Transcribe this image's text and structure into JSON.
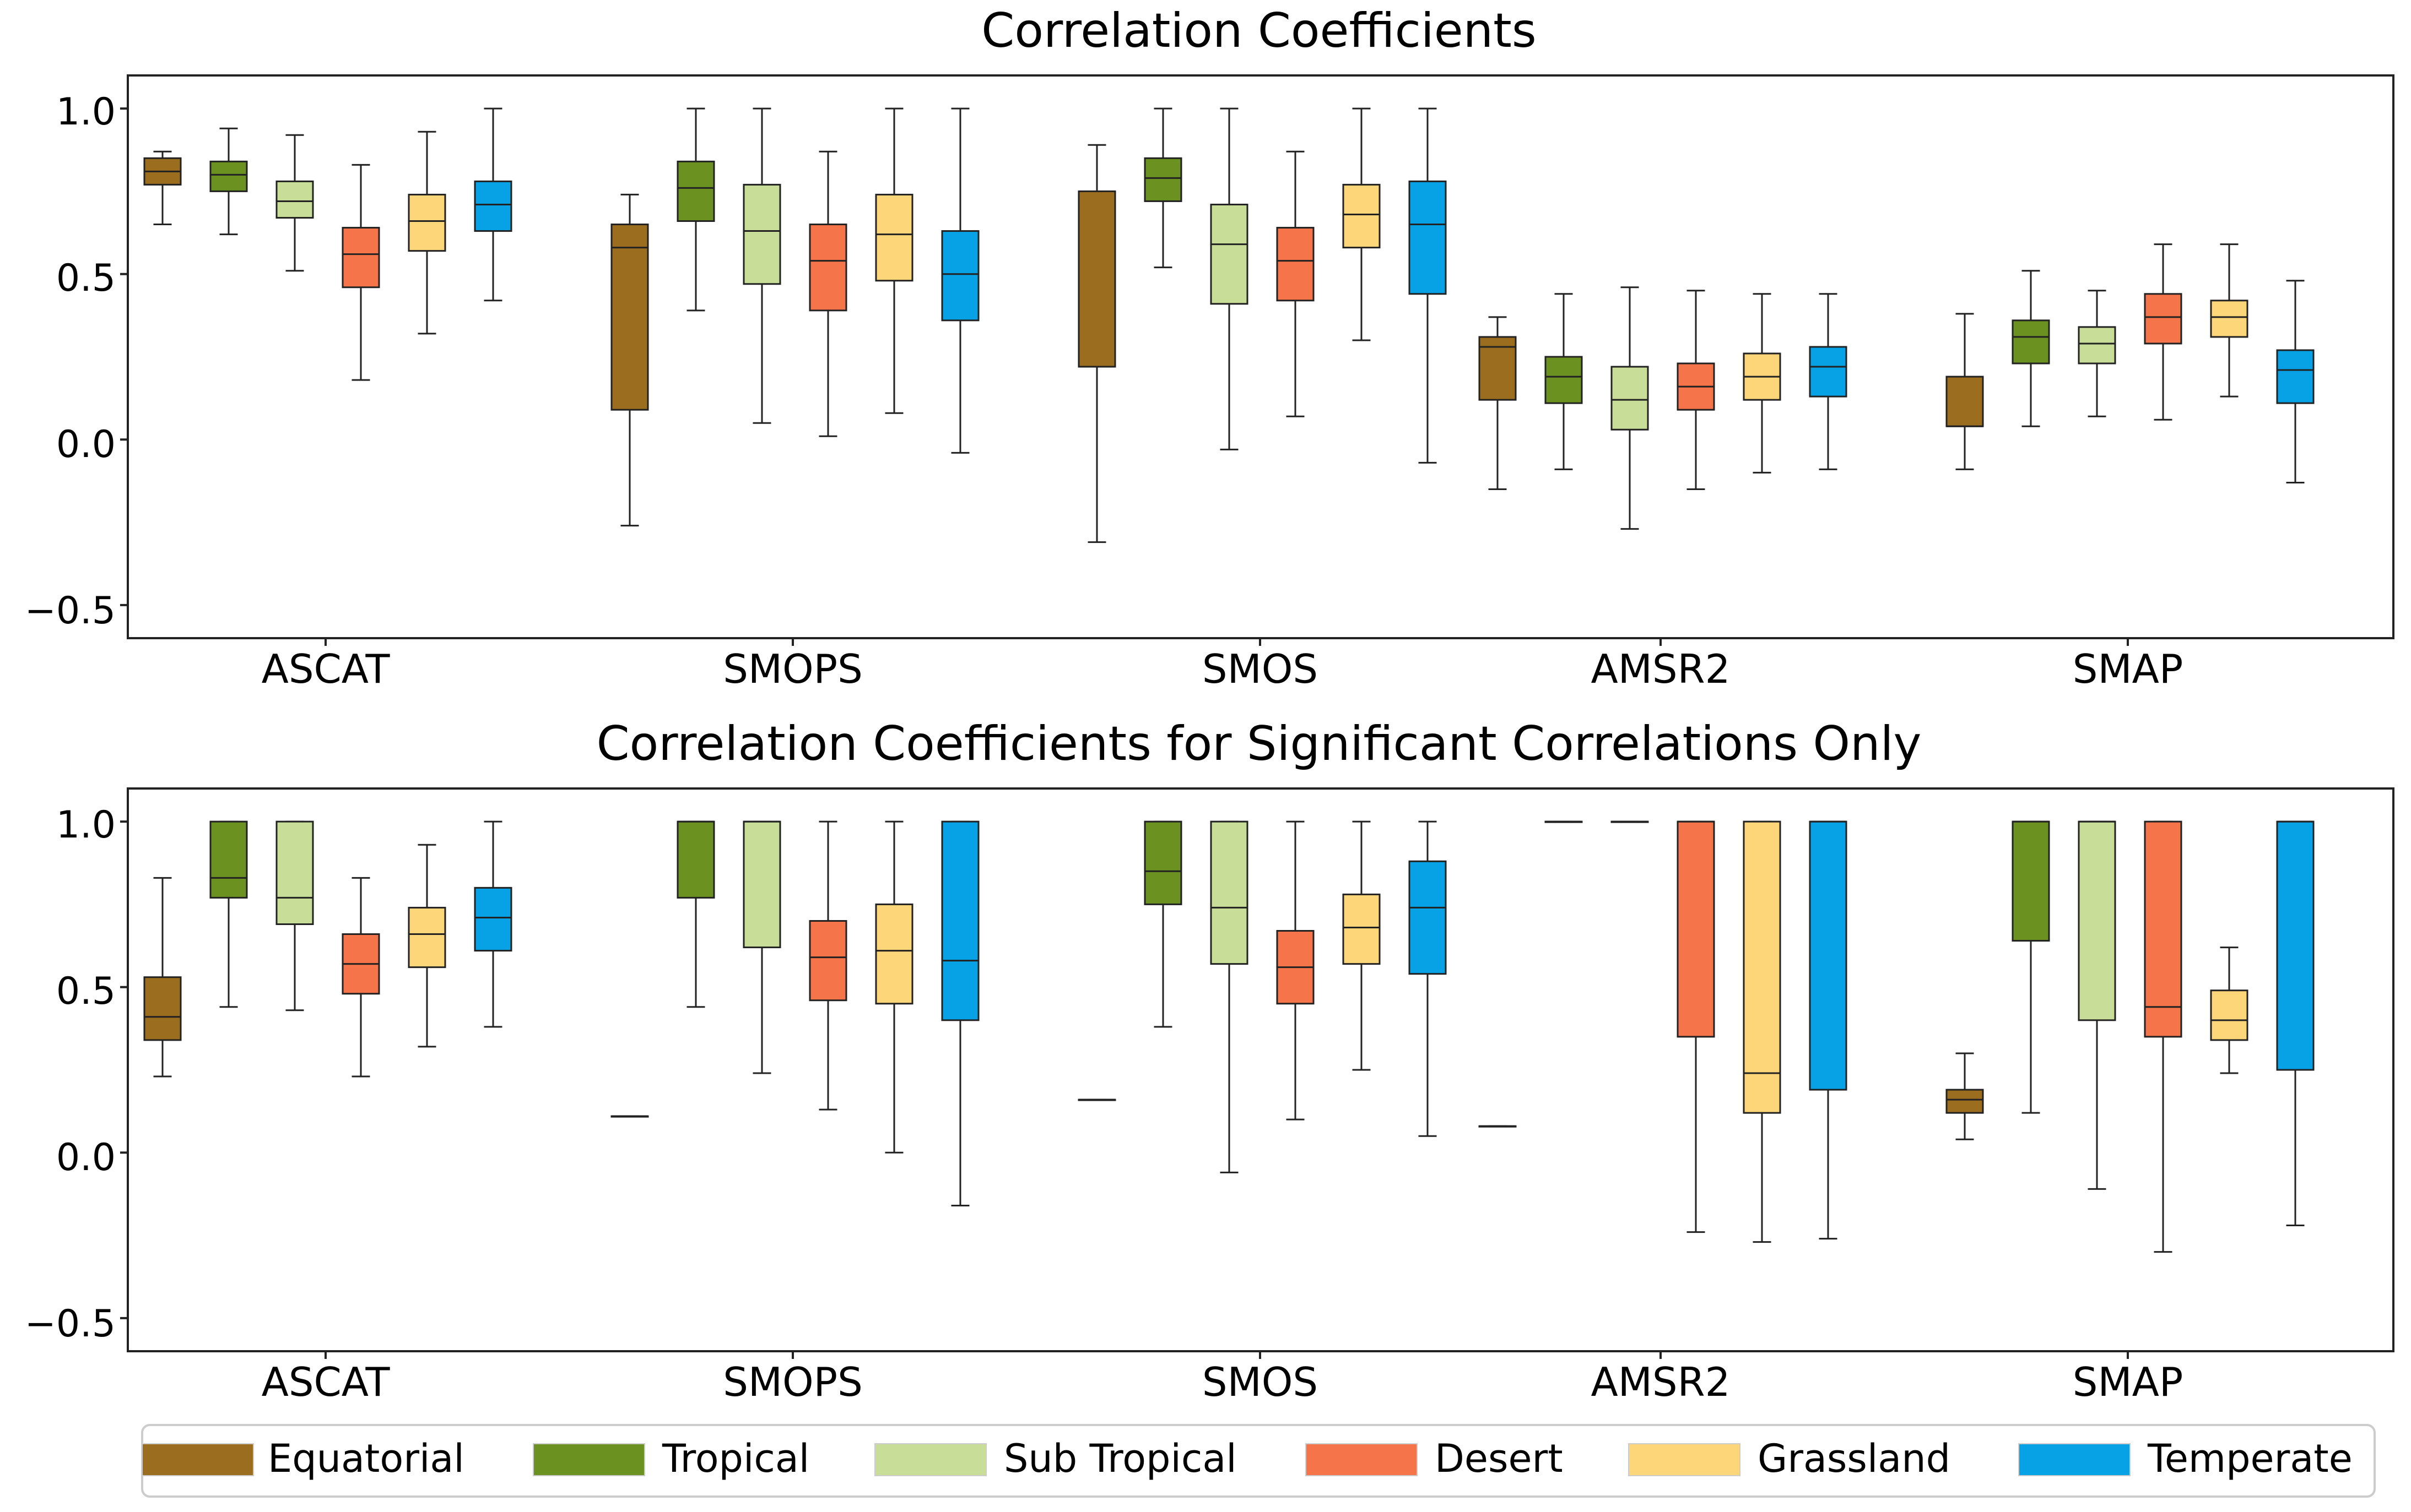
{
  "colors": {
    "Equatorial": "#9b6d1f",
    "Tropical": "#6b9221",
    "Sub Tropical": "#c8de98",
    "Desert": "#f6744a",
    "Grassland": "#fed67a",
    "Temperate": "#07a2e6"
  },
  "legend": {
    "labels": [
      "Equatorial",
      "Tropical",
      "Sub Tropical",
      "Desert",
      "Grassland",
      "Temperate"
    ]
  },
  "chart_data": [
    {
      "type": "box",
      "title": "Correlation Coefficients",
      "categories": [
        "ASCAT",
        "SMOPS",
        "SMOS",
        "AMSR2",
        "SMAP"
      ],
      "y_ticks": [
        "1.0",
        "0.5",
        "0.0",
        "−0.5"
      ],
      "ylim": [
        -0.6,
        1.1
      ],
      "series": [
        {
          "name": "Equatorial",
          "boxes": [
            {
              "whislo": 0.65,
              "q1": 0.77,
              "med": 0.81,
              "q3": 0.85,
              "whishi": 0.87
            },
            {
              "whislo": -0.26,
              "q1": 0.09,
              "med": 0.58,
              "q3": 0.65,
              "whishi": 0.74
            },
            {
              "whislo": -0.31,
              "q1": 0.22,
              "med": 0.22,
              "q3": 0.75,
              "whishi": 0.89
            },
            {
              "whislo": -0.15,
              "q1": 0.12,
              "med": 0.28,
              "q3": 0.31,
              "whishi": 0.37
            },
            {
              "whislo": -0.09,
              "q1": 0.04,
              "med": 0.04,
              "q3": 0.19,
              "whishi": 0.38
            }
          ]
        },
        {
          "name": "Tropical",
          "boxes": [
            {
              "whislo": 0.62,
              "q1": 0.75,
              "med": 0.8,
              "q3": 0.84,
              "whishi": 0.94
            },
            {
              "whislo": 0.39,
              "q1": 0.66,
              "med": 0.76,
              "q3": 0.84,
              "whishi": 1.0
            },
            {
              "whislo": 0.52,
              "q1": 0.72,
              "med": 0.79,
              "q3": 0.85,
              "whishi": 1.0
            },
            {
              "whislo": -0.09,
              "q1": 0.11,
              "med": 0.19,
              "q3": 0.25,
              "whishi": 0.44
            },
            {
              "whislo": 0.04,
              "q1": 0.23,
              "med": 0.31,
              "q3": 0.36,
              "whishi": 0.51
            }
          ]
        },
        {
          "name": "Sub Tropical",
          "boxes": [
            {
              "whislo": 0.51,
              "q1": 0.67,
              "med": 0.72,
              "q3": 0.78,
              "whishi": 0.92
            },
            {
              "whislo": 0.05,
              "q1": 0.47,
              "med": 0.63,
              "q3": 0.77,
              "whishi": 1.0
            },
            {
              "whislo": -0.03,
              "q1": 0.41,
              "med": 0.59,
              "q3": 0.71,
              "whishi": 1.0
            },
            {
              "whislo": -0.27,
              "q1": 0.03,
              "med": 0.12,
              "q3": 0.22,
              "whishi": 0.46
            },
            {
              "whislo": 0.07,
              "q1": 0.23,
              "med": 0.29,
              "q3": 0.34,
              "whishi": 0.45
            }
          ]
        },
        {
          "name": "Desert",
          "boxes": [
            {
              "whislo": 0.18,
              "q1": 0.46,
              "med": 0.56,
              "q3": 0.64,
              "whishi": 0.83
            },
            {
              "whislo": 0.01,
              "q1": 0.39,
              "med": 0.54,
              "q3": 0.65,
              "whishi": 0.87
            },
            {
              "whislo": 0.07,
              "q1": 0.42,
              "med": 0.54,
              "q3": 0.64,
              "whishi": 0.87
            },
            {
              "whislo": -0.15,
              "q1": 0.09,
              "med": 0.16,
              "q3": 0.23,
              "whishi": 0.45
            },
            {
              "whislo": 0.06,
              "q1": 0.29,
              "med": 0.37,
              "q3": 0.44,
              "whishi": 0.59
            }
          ]
        },
        {
          "name": "Grassland",
          "boxes": [
            {
              "whislo": 0.32,
              "q1": 0.57,
              "med": 0.66,
              "q3": 0.74,
              "whishi": 0.93
            },
            {
              "whislo": 0.08,
              "q1": 0.48,
              "med": 0.62,
              "q3": 0.74,
              "whishi": 1.0
            },
            {
              "whislo": 0.3,
              "q1": 0.58,
              "med": 0.68,
              "q3": 0.77,
              "whishi": 1.0
            },
            {
              "whislo": -0.1,
              "q1": 0.12,
              "med": 0.19,
              "q3": 0.26,
              "whishi": 0.44
            },
            {
              "whislo": 0.13,
              "q1": 0.31,
              "med": 0.37,
              "q3": 0.42,
              "whishi": 0.59
            }
          ]
        },
        {
          "name": "Temperate",
          "boxes": [
            {
              "whislo": 0.42,
              "q1": 0.63,
              "med": 0.71,
              "q3": 0.78,
              "whishi": 1.0
            },
            {
              "whislo": -0.04,
              "q1": 0.36,
              "med": 0.5,
              "q3": 0.63,
              "whishi": 1.0
            },
            {
              "whislo": -0.07,
              "q1": 0.44,
              "med": 0.65,
              "q3": 0.78,
              "whishi": 1.0
            },
            {
              "whislo": -0.09,
              "q1": 0.13,
              "med": 0.22,
              "q3": 0.28,
              "whishi": 0.44
            },
            {
              "whislo": -0.13,
              "q1": 0.11,
              "med": 0.21,
              "q3": 0.27,
              "whishi": 0.48
            }
          ]
        }
      ]
    },
    {
      "type": "box",
      "title": "Correlation Coefficients for Significant Correlations Only",
      "categories": [
        "ASCAT",
        "SMOPS",
        "SMOS",
        "AMSR2",
        "SMAP"
      ],
      "y_ticks": [
        "1.0",
        "0.5",
        "0.0",
        "−0.5"
      ],
      "ylim": [
        -0.6,
        1.1
      ],
      "series": [
        {
          "name": "Equatorial",
          "boxes": [
            {
              "whislo": 0.23,
              "q1": 0.34,
              "med": 0.41,
              "q3": 0.53,
              "whishi": 0.83
            },
            {
              "whislo": 0.11,
              "q1": 0.11,
              "med": 0.11,
              "q3": 0.11,
              "whishi": 0.11
            },
            {
              "whislo": 0.16,
              "q1": 0.16,
              "med": 0.16,
              "q3": 0.16,
              "whishi": 0.16
            },
            {
              "whislo": 0.08,
              "q1": 0.08,
              "med": 0.08,
              "q3": 0.08,
              "whishi": 0.08
            },
            {
              "whislo": 0.04,
              "q1": 0.12,
              "med": 0.16,
              "q3": 0.19,
              "whishi": 0.3
            }
          ]
        },
        {
          "name": "Tropical",
          "boxes": [
            {
              "whislo": 0.44,
              "q1": 0.77,
              "med": 0.83,
              "q3": 1.0,
              "whishi": 1.0
            },
            {
              "whislo": 0.44,
              "q1": 0.77,
              "med": 1.0,
              "q3": 1.0,
              "whishi": 1.0
            },
            {
              "whislo": 0.38,
              "q1": 0.75,
              "med": 0.85,
              "q3": 1.0,
              "whishi": 1.0
            },
            {
              "whislo": 1.0,
              "q1": 1.0,
              "med": 1.0,
              "q3": 1.0,
              "whishi": 1.0
            },
            {
              "whislo": 0.12,
              "q1": 0.64,
              "med": 1.0,
              "q3": 1.0,
              "whishi": 1.0
            }
          ]
        },
        {
          "name": "Sub Tropical",
          "boxes": [
            {
              "whislo": 0.43,
              "q1": 0.69,
              "med": 0.77,
              "q3": 1.0,
              "whishi": 1.0
            },
            {
              "whislo": 0.24,
              "q1": 0.62,
              "med": 1.0,
              "q3": 1.0,
              "whishi": 1.0
            },
            {
              "whislo": -0.06,
              "q1": 0.57,
              "med": 0.74,
              "q3": 1.0,
              "whishi": 1.0
            },
            {
              "whislo": 1.0,
              "q1": 1.0,
              "med": 1.0,
              "q3": 1.0,
              "whishi": 1.0
            },
            {
              "whislo": -0.11,
              "q1": 0.4,
              "med": 1.0,
              "q3": 1.0,
              "whishi": 1.0
            }
          ]
        },
        {
          "name": "Desert",
          "boxes": [
            {
              "whislo": 0.23,
              "q1": 0.48,
              "med": 0.57,
              "q3": 0.66,
              "whishi": 0.83
            },
            {
              "whislo": 0.13,
              "q1": 0.46,
              "med": 0.59,
              "q3": 0.7,
              "whishi": 1.0
            },
            {
              "whislo": 0.1,
              "q1": 0.45,
              "med": 0.56,
              "q3": 0.67,
              "whishi": 1.0
            },
            {
              "whislo": -0.24,
              "q1": 0.35,
              "med": 1.0,
              "q3": 1.0,
              "whishi": 1.0
            },
            {
              "whislo": -0.3,
              "q1": 0.35,
              "med": 0.44,
              "q3": 1.0,
              "whishi": 1.0
            }
          ]
        },
        {
          "name": "Grassland",
          "boxes": [
            {
              "whislo": 0.32,
              "q1": 0.56,
              "med": 0.66,
              "q3": 0.74,
              "whishi": 0.93
            },
            {
              "whislo": 0.0,
              "q1": 0.45,
              "med": 0.61,
              "q3": 0.75,
              "whishi": 1.0
            },
            {
              "whislo": 0.25,
              "q1": 0.57,
              "med": 0.68,
              "q3": 0.78,
              "whishi": 1.0
            },
            {
              "whislo": -0.27,
              "q1": 0.12,
              "med": 0.24,
              "q3": 1.0,
              "whishi": 1.0
            },
            {
              "whislo": 0.24,
              "q1": 0.34,
              "med": 0.4,
              "q3": 0.49,
              "whishi": 0.62
            }
          ]
        },
        {
          "name": "Temperate",
          "boxes": [
            {
              "whislo": 0.38,
              "q1": 0.61,
              "med": 0.71,
              "q3": 0.8,
              "whishi": 1.0
            },
            {
              "whislo": -0.16,
              "q1": 0.4,
              "med": 0.58,
              "q3": 1.0,
              "whishi": 1.0
            },
            {
              "whislo": 0.05,
              "q1": 0.54,
              "med": 0.74,
              "q3": 0.88,
              "whishi": 1.0
            },
            {
              "whislo": -0.26,
              "q1": 0.19,
              "med": 1.0,
              "q3": 1.0,
              "whishi": 1.0
            },
            {
              "whislo": -0.22,
              "q1": 0.25,
              "med": 1.0,
              "q3": 1.0,
              "whishi": 1.0
            }
          ]
        }
      ]
    }
  ]
}
